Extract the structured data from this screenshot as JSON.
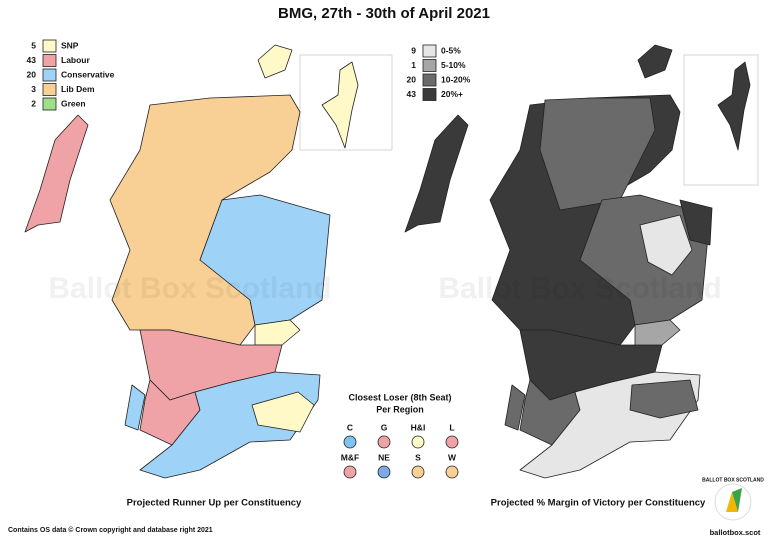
{
  "title": "BMG, 27th - 30th of April 2021",
  "watermark": "Ballot Box Scotland",
  "left_map": {
    "caption": "Projected Runner Up per Constituency",
    "legend": [
      {
        "count": 5,
        "label": "SNP",
        "color": "#fff9c8"
      },
      {
        "count": 43,
        "label": "Labour",
        "color": "#f0a3a6"
      },
      {
        "count": 20,
        "label": "Conservative",
        "color": "#9fd2f7"
      },
      {
        "count": 3,
        "label": "Lib Dem",
        "color": "#f8cf94"
      },
      {
        "count": 2,
        "label": "Green",
        "color": "#9fdf86"
      }
    ]
  },
  "right_map": {
    "caption": "Projected % Margin of Victory per Constituency",
    "legend": [
      {
        "count": 9,
        "label": "0-5%",
        "color": "#e6e6e6"
      },
      {
        "count": 1,
        "label": "5-10%",
        "color": "#a6a6a6"
      },
      {
        "count": 20,
        "label": "10-20%",
        "color": "#6a6a6a"
      },
      {
        "count": 43,
        "label": "20%+",
        "color": "#3a3a3a"
      }
    ]
  },
  "closest_loser": {
    "title": "Closest Loser (8th Seat)",
    "subtitle": "Per Region",
    "regions": [
      {
        "label": "C",
        "color": "#7fc3f3"
      },
      {
        "label": "G",
        "color": "#f0a3a6"
      },
      {
        "label": "H&I",
        "color": "#fff9c8"
      },
      {
        "label": "L",
        "color": "#f0a3a6"
      },
      {
        "label": "M&F",
        "color": "#f0a3a6"
      },
      {
        "label": "NE",
        "color": "#7fa9e6"
      },
      {
        "label": "S",
        "color": "#f8cf94"
      },
      {
        "label": "W",
        "color": "#f8cf94"
      }
    ]
  },
  "footer": "Contains OS data © Crown copyright and database right 2021",
  "logo": {
    "name": "BALLOT BOX SCOTLAND",
    "url": "ballotbox.scot"
  }
}
